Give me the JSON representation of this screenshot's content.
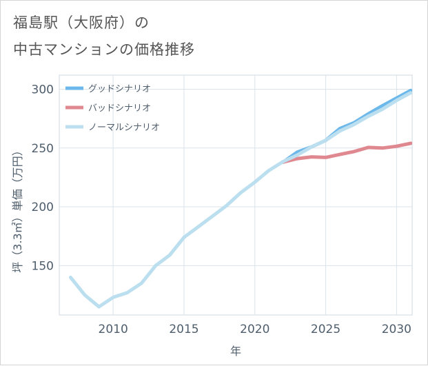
{
  "title": {
    "line1": "福島駅（大阪府）の",
    "line2": "中古マンションの価格推移"
  },
  "chart_data": {
    "type": "line",
    "title": "福島駅（大阪府）の中古マンションの価格推移",
    "xlabel": "年",
    "ylabel": "坪（3.3㎡）単価（万円）",
    "xlim": [
      2006.2,
      2031.1
    ],
    "ylim": [
      108,
      312
    ],
    "x_ticks": [
      2010,
      2015,
      2020,
      2025,
      2030
    ],
    "x_tick_labels": [
      "2010",
      "2015",
      "2020",
      "2025",
      "2030"
    ],
    "y_ticks": [
      150,
      200,
      250,
      300
    ],
    "y_tick_labels": [
      "150",
      "200",
      "250",
      "300"
    ],
    "grid": true,
    "legend_position": "top-left",
    "series": [
      {
        "name": "グッドシナリオ",
        "color": "#6cb8ea",
        "x": [
          2022,
          2023,
          2024,
          2025,
          2026,
          2027,
          2028,
          2029,
          2030,
          2031
        ],
        "values": [
          238.0,
          246.5,
          251.0,
          256.5,
          266.5,
          271.5,
          279.0,
          286.0,
          292.5,
          299.0
        ]
      },
      {
        "name": "バッドシナリオ",
        "color": "#e08890",
        "x": [
          2022,
          2023,
          2024,
          2025,
          2026,
          2027,
          2028,
          2029,
          2030,
          2031
        ],
        "values": [
          238.0,
          241.0,
          242.5,
          242.0,
          244.5,
          247.0,
          250.5,
          250.0,
          251.5,
          254.0
        ]
      },
      {
        "name": "ノーマルシナリオ",
        "color": "#bcdff0",
        "x": [
          2007,
          2008,
          2009,
          2010,
          2011,
          2012,
          2013,
          2014,
          2015,
          2016,
          2017,
          2018,
          2019,
          2020,
          2021,
          2022,
          2023,
          2024,
          2025,
          2026,
          2027,
          2028,
          2029,
          2030,
          2031
        ],
        "values": [
          140.0,
          125.0,
          115.0,
          123.0,
          127.0,
          135.0,
          150.0,
          159.0,
          174.0,
          183.0,
          192.0,
          201.0,
          212.0,
          221.0,
          231.0,
          238.5,
          244.0,
          251.0,
          256.5,
          264.5,
          270.0,
          277.0,
          283.0,
          290.5,
          297.0
        ]
      }
    ]
  }
}
